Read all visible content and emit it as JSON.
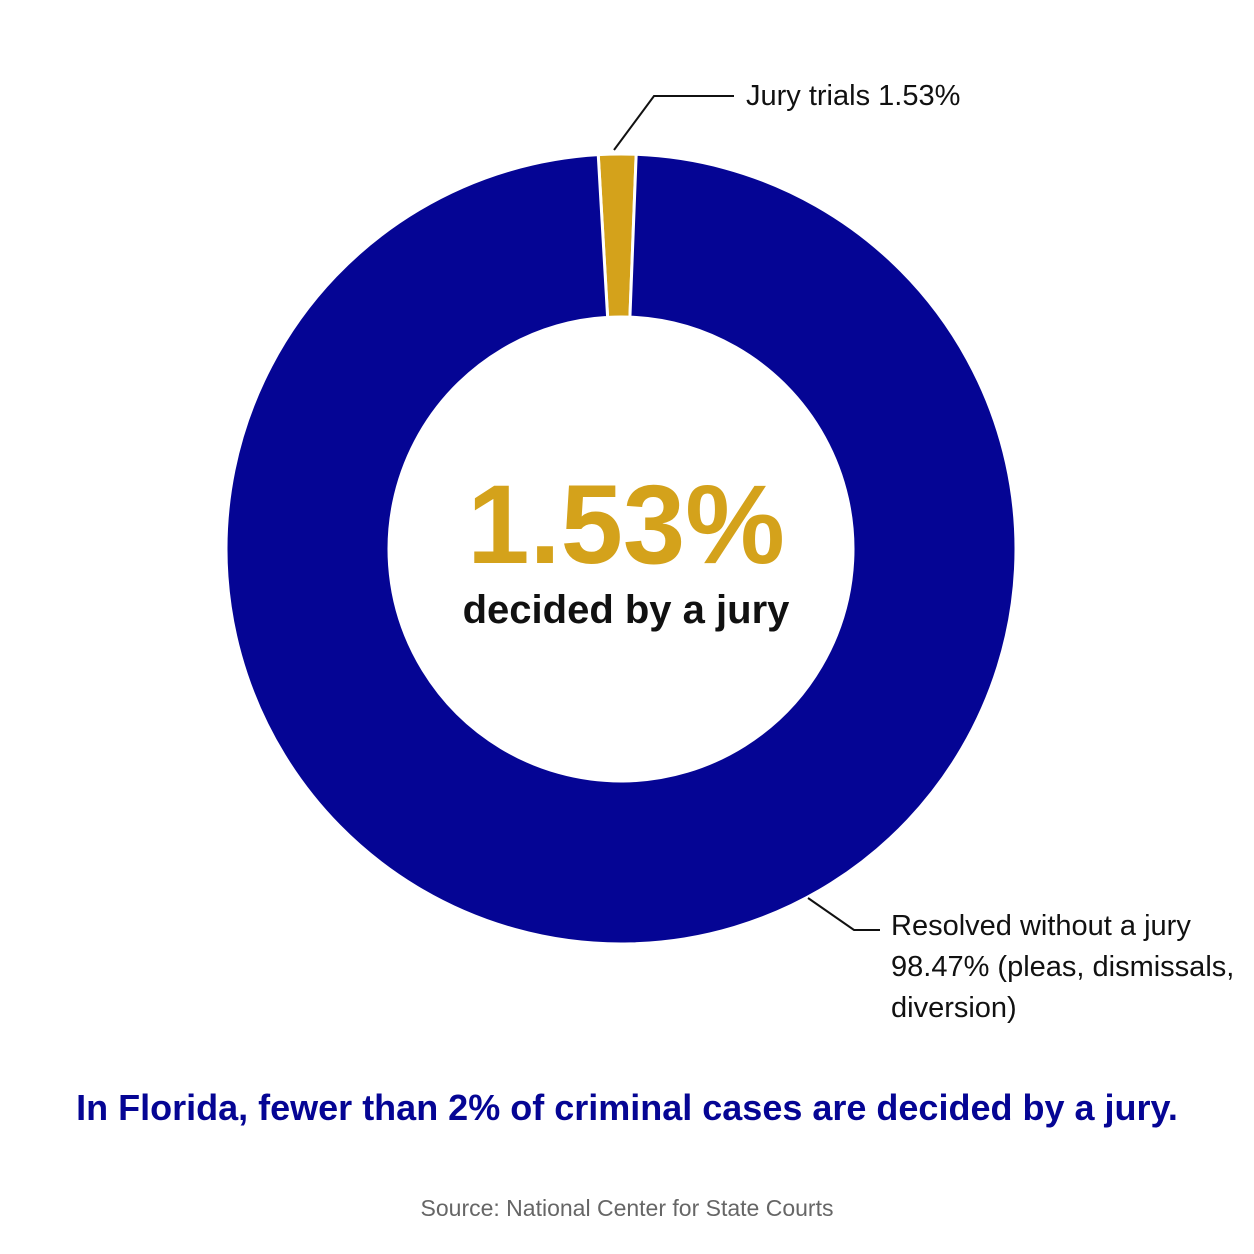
{
  "chart_data": {
    "type": "pie",
    "variant": "donut",
    "slices": [
      {
        "label": "Jury trials",
        "value": 1.53,
        "value_text": "1.53%",
        "color": "#D4A21B"
      },
      {
        "label": "Resolved without a jury",
        "value": 98.47,
        "value_text": "98.47%",
        "note": "(pleas, dismissals,",
        "note2": "diversion)",
        "color": "#050594"
      }
    ],
    "center": {
      "value": "1.53%",
      "caption": "decided by a jury"
    },
    "title": "",
    "legend": "none"
  },
  "labels": {
    "jury": "Jury trials 1.53%",
    "nojury_line1": "Resolved without a jury",
    "nojury_line2": "98.47% (pleas, dismissals,",
    "nojury_line3": "diversion)"
  },
  "headline": "In Florida, fewer than 2% of criminal cases are decided by a jury.",
  "source": "Source: National Center for State Courts",
  "colors": {
    "accent_gold": "#D4A21B",
    "navy": "#050594",
    "text": "#111111",
    "muted": "#666666",
    "background": "#FFFFFF"
  }
}
